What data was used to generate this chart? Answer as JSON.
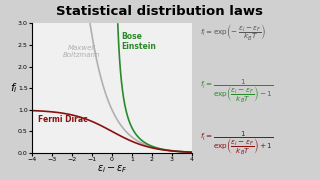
{
  "title": "Statistical distribution laws",
  "title_fontsize": 9.5,
  "title_fontweight": "bold",
  "bg_color": "#d0d0d0",
  "plot_bg_color": "#f0f0f0",
  "xlabel": "$\\varepsilon_i - \\varepsilon_F$",
  "ylabel": "$f_i$",
  "xlim": [
    -4,
    4
  ],
  "ylim": [
    0,
    3
  ],
  "xticks": [
    -4,
    -3,
    -2,
    -1,
    0,
    1,
    2,
    3,
    4
  ],
  "yticks": [
    0,
    0.5,
    1.0,
    1.5,
    2.0,
    2.5,
    3
  ],
  "mb_color": "#b0b0b0",
  "be_color": "#2a8a2a",
  "fd_color": "#8B1010",
  "mb_label": "Maxwell\nBoltzmann",
  "be_label": "Bose\nEinstein",
  "fd_label": "Fermi Dirac",
  "eq1_color": "#555555",
  "eq2_color": "#2a8a2a",
  "eq3_color": "#8B1010",
  "kBT": 1.0,
  "line_width": 1.2
}
